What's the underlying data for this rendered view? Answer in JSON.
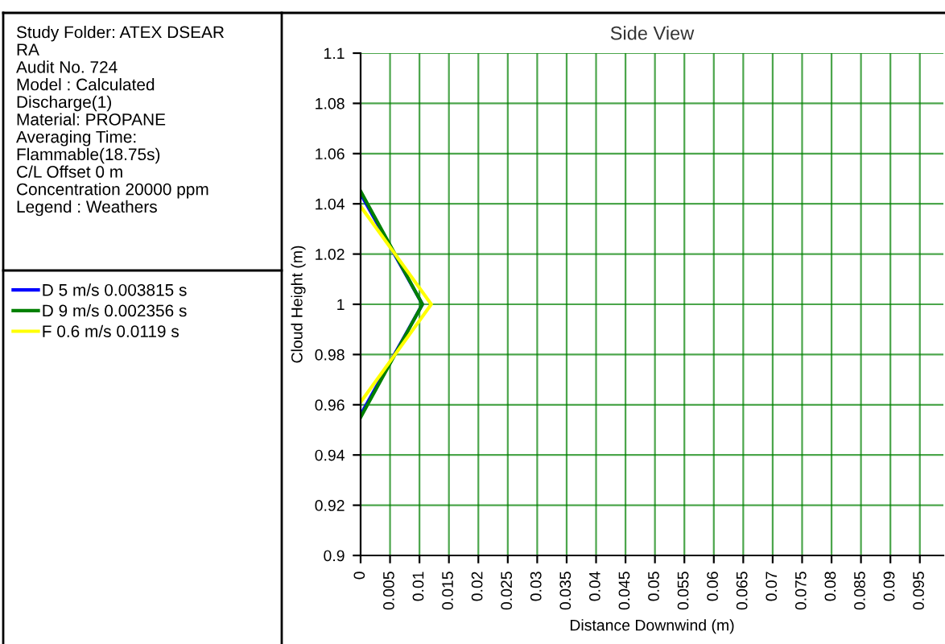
{
  "chart_data": {
    "type": "line",
    "title": "Side View",
    "xlabel": "Distance Downwind (m)",
    "ylabel": "Cloud Height (m)",
    "annotations": [
      "Study Folder: ATEX DSEAR\nRA\nAudit No. 724\nModel : Calculated\nDischarge(1)\nMaterial: PROPANE\nAveraging Time:\nFlammable(18.75s)\nC/L Offset 0 m\nConcentration 20000 ppm\nLegend : Weathers"
    ],
    "series": [
      {
        "name": "D 5 m/s 0.003815 s",
        "color": "#0000ff",
        "x": [
          0,
          0.0105,
          0
        ],
        "values": [
          1.044,
          1.0,
          0.956
        ]
      },
      {
        "name": "D 9 m/s 0.002356 s",
        "color": "#008000",
        "x": [
          0,
          0.0105,
          0
        ],
        "values": [
          1.045,
          1.0,
          0.955
        ]
      },
      {
        "name": "F 0.6 m/s 0.0119 s",
        "color": "#ffff00",
        "x": [
          0,
          0.012,
          0
        ],
        "values": [
          1.039,
          1.0,
          0.961
        ]
      }
    ],
    "xlim": [
      0,
      0.099
    ],
    "ylim": [
      0.9,
      1.1
    ],
    "xticks": [
      0,
      0.005,
      0.01,
      0.015,
      0.02,
      0.025,
      0.03,
      0.035,
      0.04,
      0.045,
      0.05,
      0.055,
      0.06,
      0.065,
      0.07,
      0.075,
      0.08,
      0.085,
      0.09,
      0.095
    ],
    "yticks": [
      0.9,
      0.92,
      0.94,
      0.96,
      0.98,
      1,
      1.02,
      1.04,
      1.06,
      1.08,
      1.1
    ],
    "grid": true,
    "legend": "left",
    "marker": "none",
    "line_style": "solid"
  }
}
